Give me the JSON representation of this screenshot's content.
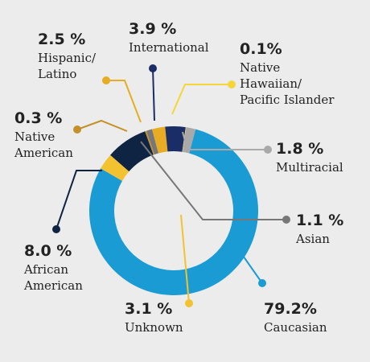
{
  "chart_data": {
    "type": "pie",
    "style": "donut",
    "series": [
      {
        "name": "Caucasian",
        "value": 79.2,
        "label_value": "79.2%",
        "label_lines": [
          "Caucasian"
        ],
        "color": "#1b9bd4"
      },
      {
        "name": "Unknown",
        "value": 3.1,
        "label_value": "3.1 %",
        "label_lines": [
          "Unknown"
        ],
        "color": "#f2c230"
      },
      {
        "name": "African American",
        "value": 8.0,
        "label_value": "8.0 %",
        "label_lines": [
          "African",
          "American"
        ],
        "color": "#0f2343"
      },
      {
        "name": "Native American",
        "value": 0.3,
        "label_value": "0.3 %",
        "label_lines": [
          "Native",
          "American"
        ],
        "color": "#c4902a"
      },
      {
        "name": "Asian",
        "value": 1.1,
        "label_value": "1.1 %",
        "label_lines": [
          "Asian"
        ],
        "color": "#777777"
      },
      {
        "name": "Hispanic/ Latino",
        "value": 2.5,
        "label_value": "2.5 %",
        "label_lines": [
          "Hispanic/",
          "Latino"
        ],
        "color": "#e7ac23"
      },
      {
        "name": "International",
        "value": 3.9,
        "label_value": "3.9 %",
        "label_lines": [
          "International"
        ],
        "color": "#1b2d66"
      },
      {
        "name": "Native Hawaiian/ Pacific Islander",
        "value": 0.1,
        "label_value": "0.1%",
        "label_lines": [
          "Native",
          "Hawaiian/",
          "Pacific Islander"
        ],
        "color": "#f5d53a"
      },
      {
        "name": "Multiracial",
        "value": 1.8,
        "label_value": "1.8 %",
        "label_lines": [
          "Multiracial"
        ],
        "color": "#a9a9a9"
      }
    ]
  }
}
